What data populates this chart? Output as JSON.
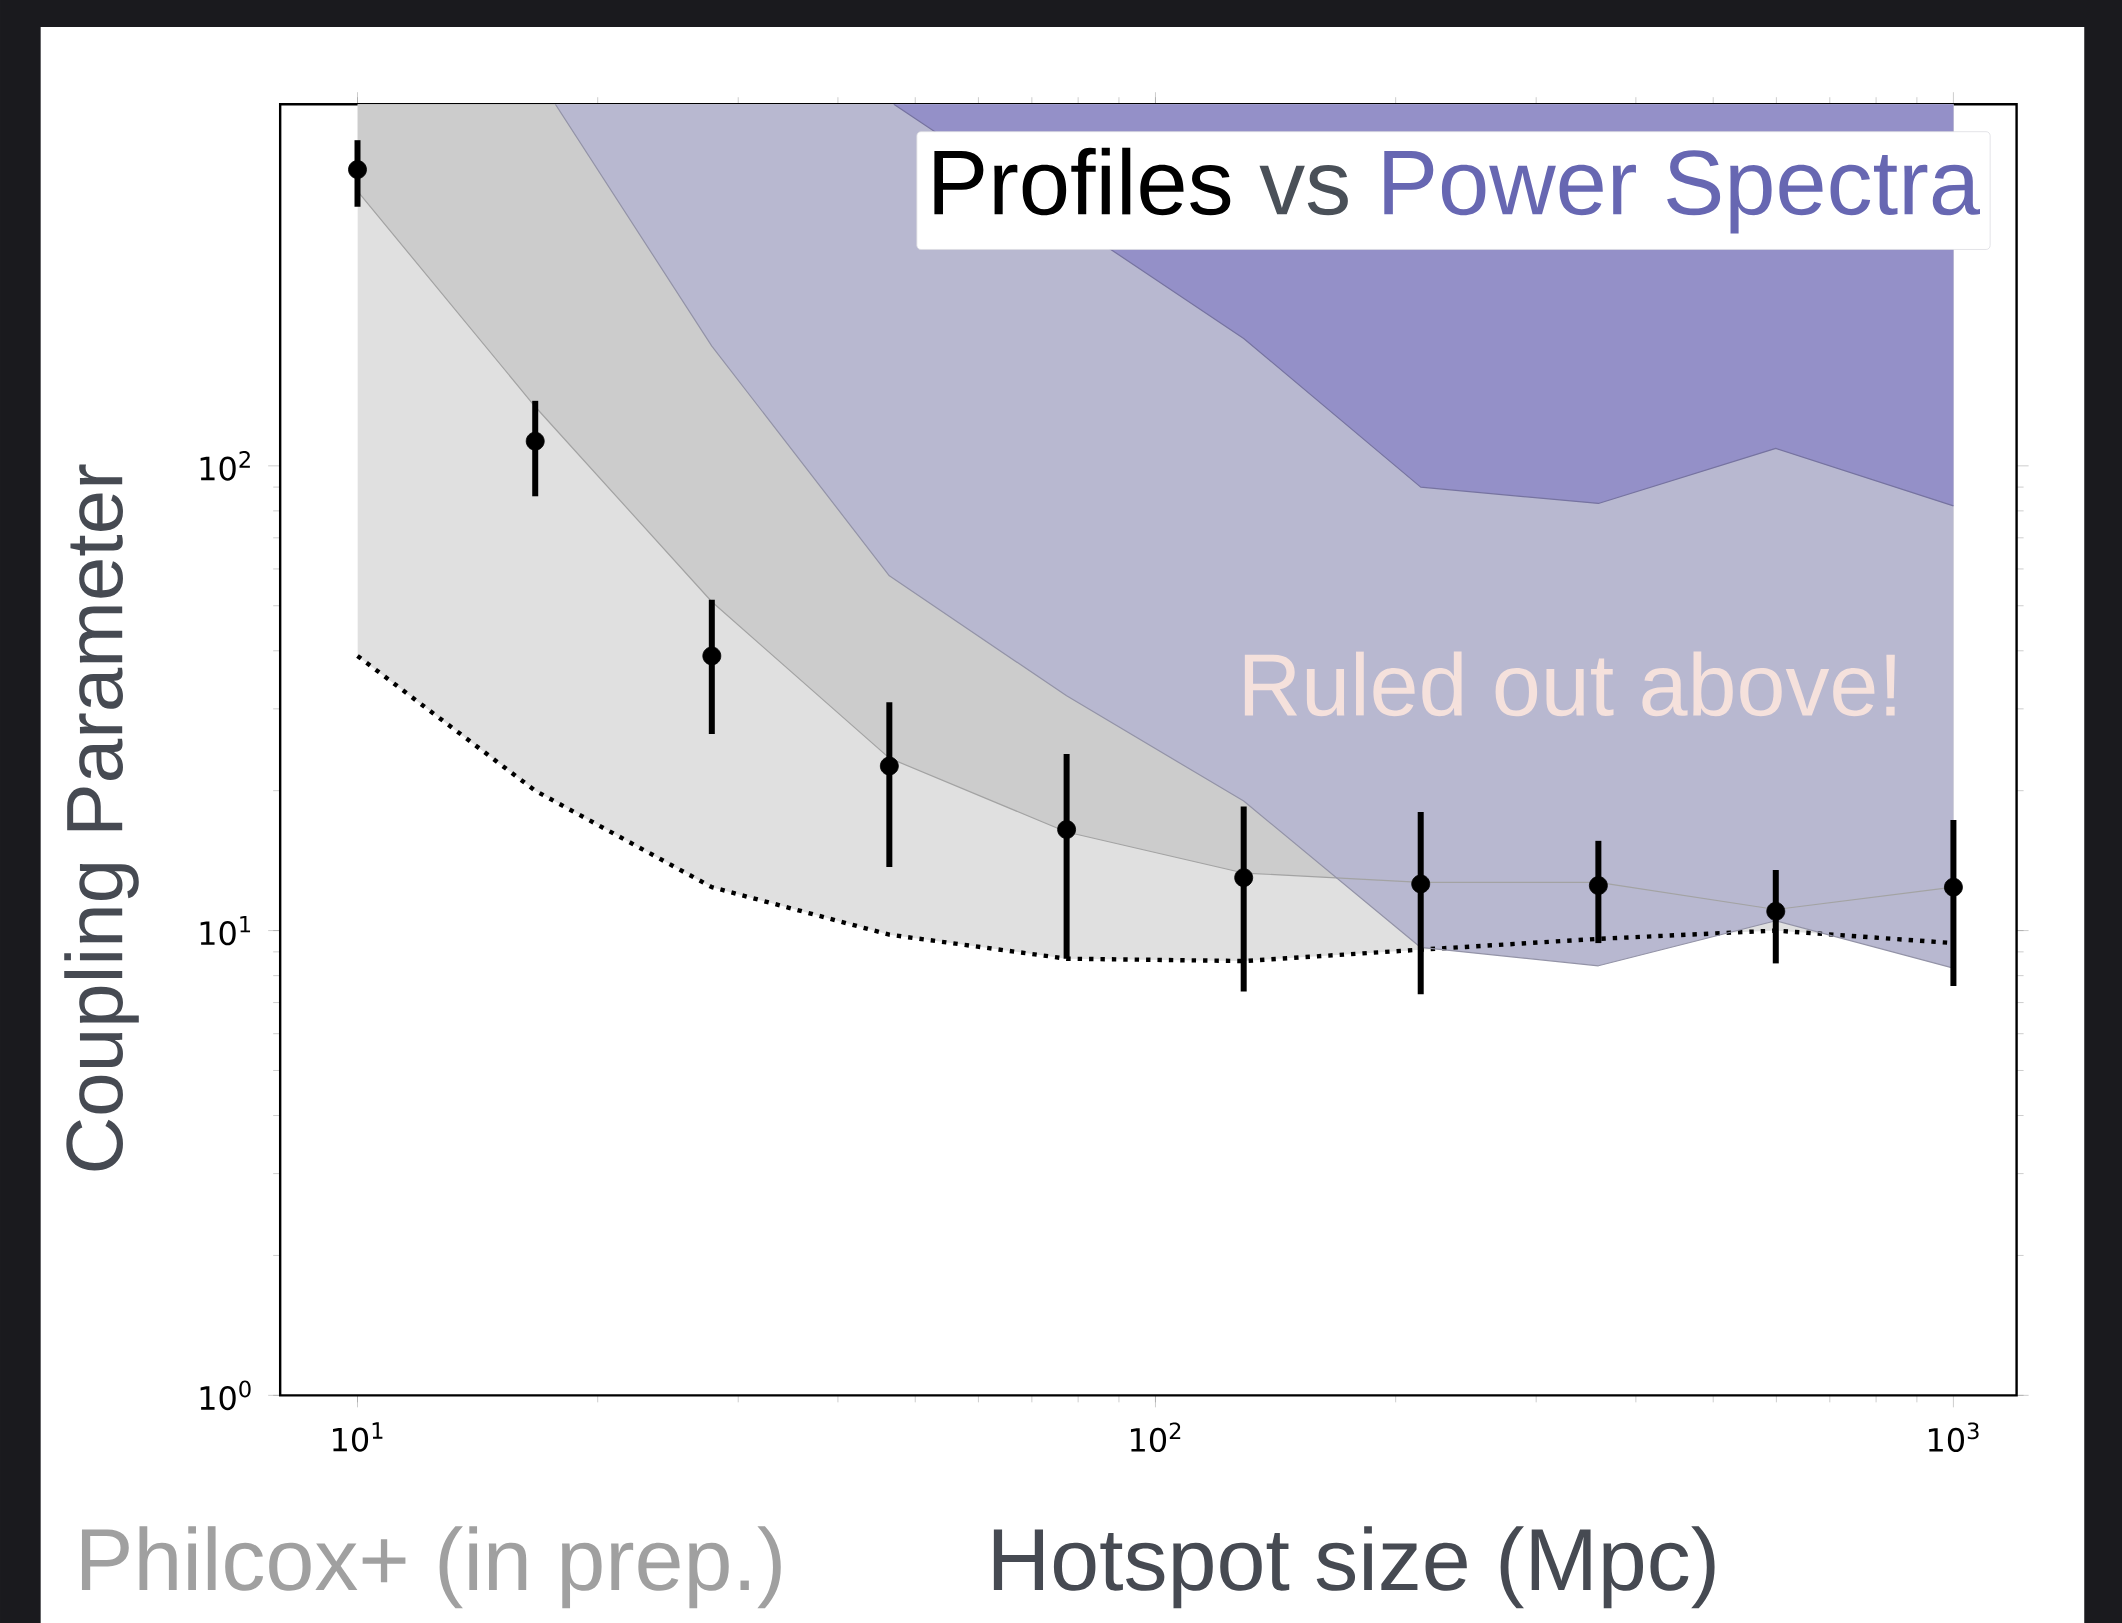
{
  "chart_data": {
    "type": "scatter",
    "xlabel": "Hotspot size (Mpc)",
    "ylabel": "Coupling Parameter",
    "annotations": [
      "vs",
      "Ruled out above!",
      "Philcox+ (in prep.)"
    ],
    "log": "xy",
    "xlim": [
      8,
      1200
    ],
    "ylim": [
      1,
      600
    ],
    "xticks": [
      {
        "value": 10,
        "label": "10$^{1}$"
      },
      {
        "value": 100,
        "label": "10$^{2}$"
      },
      {
        "value": 1000,
        "label": "10$^{3}$"
      }
    ],
    "yticks": [
      {
        "value": 1,
        "label": "10$^{0}$"
      },
      {
        "value": 10,
        "label": "10$^{1}$"
      },
      {
        "value": 100,
        "label": "10$^{2}$"
      }
    ],
    "legend": "top right",
    "series": [
      {
        "type": "area",
        "color": "#e0e0e0",
        "line_style": "dotted",
        "x": [
          10,
          16.7,
          27.8,
          46.4,
          77.4,
          129,
          215,
          359,
          599,
          1000
        ],
        "values": [
          39,
          20,
          12.4,
          9.8,
          8.7,
          8.6,
          9.1,
          9.6,
          10,
          9.4
        ]
      },
      {
        "type": "area",
        "color": "#cccccc",
        "x": [
          10,
          16.7,
          27.8,
          46.4,
          77.4,
          129,
          215,
          359,
          599,
          1000
        ],
        "values": [
          390,
          134,
          51,
          23.5,
          16.3,
          13.3,
          12.7,
          12.7,
          11.1,
          12.4
        ]
      },
      {
        "type": "area",
        "name": "Power Spectra",
        "color": "#b8b8d0",
        "x": [
          17.7,
          27.8,
          46.4,
          77.4,
          129,
          215,
          359,
          599,
          1000
        ],
        "values": [
          600,
          181,
          58,
          32,
          19,
          9.2,
          8.4,
          10.5,
          8.3
        ]
      },
      {
        "type": "area",
        "color": "#9490c8",
        "x": [
          47,
          129,
          215,
          359,
          599,
          1000
        ],
        "values": [
          600,
          188,
          90,
          83,
          109,
          82
        ]
      },
      {
        "name": "Profiles",
        "color": "#000000",
        "x": [
          10,
          16.7,
          27.8,
          46.4,
          77.4,
          129,
          215,
          359,
          599,
          1000
        ],
        "values": [
          434,
          113,
          39,
          22.6,
          16.5,
          13,
          12.6,
          12.5,
          11,
          12.4
        ],
        "errors": [
          [
            361,
            502
          ],
          [
            86,
            138
          ],
          [
            26.5,
            51.5
          ],
          [
            13.7,
            31
          ],
          [
            8.7,
            24
          ],
          [
            7.4,
            18.5
          ],
          [
            7.3,
            18
          ],
          [
            9.4,
            15.6
          ],
          [
            8.5,
            13.5
          ],
          [
            7.6,
            17.3
          ]
        ]
      }
    ]
  }
}
